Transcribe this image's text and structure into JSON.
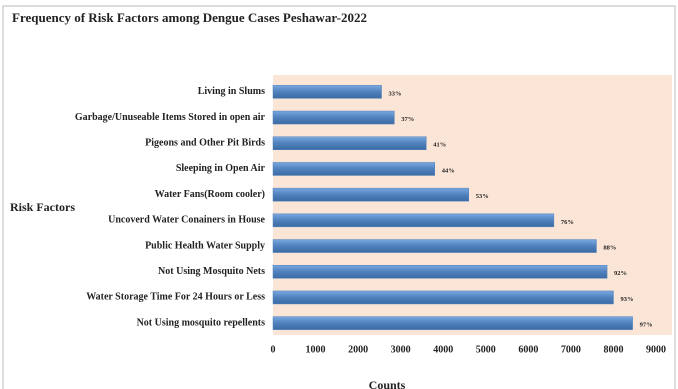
{
  "chart_data": {
    "type": "barh",
    "title": "Frequency of Risk Factors among  Dengue Cases Peshawar-2022",
    "ylabel": "Risk Factors",
    "xlabel": "Counts",
    "categories": [
      "Living in Slums",
      "Garbage/Unuseable Items Stored in open air",
      "Pigeons and Other Pit Birds",
      "Sleeping in Open Air",
      "Water Fans(Room cooler)",
      "Uncoverd Water Conainers in House",
      "Public Health Water Supply",
      "Not Using Mosquito Nets",
      "Water Storage Time For 24 Hours or Less",
      "Not Using mosquito repellents"
    ],
    "values": [
      2550,
      2850,
      3600,
      3800,
      4600,
      6600,
      7600,
      7850,
      8000,
      8450
    ],
    "data_labels": [
      "33%",
      "37%",
      "41%",
      "44%",
      "53%",
      "76%",
      "88%",
      "92%",
      "93%",
      "97%"
    ],
    "color": "#4f81bd",
    "xlim": [
      0,
      9000
    ],
    "xticks": [
      0,
      1000,
      2000,
      3000,
      4000,
      5000,
      6000,
      7000,
      8000,
      9000
    ],
    "grid": false
  }
}
